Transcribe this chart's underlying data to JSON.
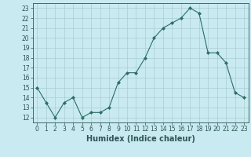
{
  "x": [
    0,
    1,
    2,
    3,
    4,
    5,
    6,
    7,
    8,
    9,
    10,
    11,
    12,
    13,
    14,
    15,
    16,
    17,
    18,
    19,
    20,
    21,
    22,
    23
  ],
  "y": [
    15,
    13.5,
    12,
    13.5,
    14,
    12,
    12.5,
    12.5,
    13,
    15.5,
    16.5,
    16.5,
    18,
    20,
    21,
    21.5,
    22,
    23,
    22.5,
    18.5,
    18.5,
    17.5,
    14.5,
    14
  ],
  "xlabel": "Humidex (Indice chaleur)",
  "ylim": [
    11.5,
    23.5
  ],
  "xlim": [
    -0.5,
    23.5
  ],
  "yticks": [
    12,
    13,
    14,
    15,
    16,
    17,
    18,
    19,
    20,
    21,
    22,
    23
  ],
  "xticks": [
    0,
    1,
    2,
    3,
    4,
    5,
    6,
    7,
    8,
    9,
    10,
    11,
    12,
    13,
    14,
    15,
    16,
    17,
    18,
    19,
    20,
    21,
    22,
    23
  ],
  "line_color": "#2d6e65",
  "marker_color": "#2d6e65",
  "bg_color": "#c8eaf0",
  "grid_color": "#aaccd4",
  "tick_label_color": "#2d5555",
  "xlabel_color": "#2d5555",
  "xlabel_fontsize": 7,
  "tick_fontsize": 5.5
}
